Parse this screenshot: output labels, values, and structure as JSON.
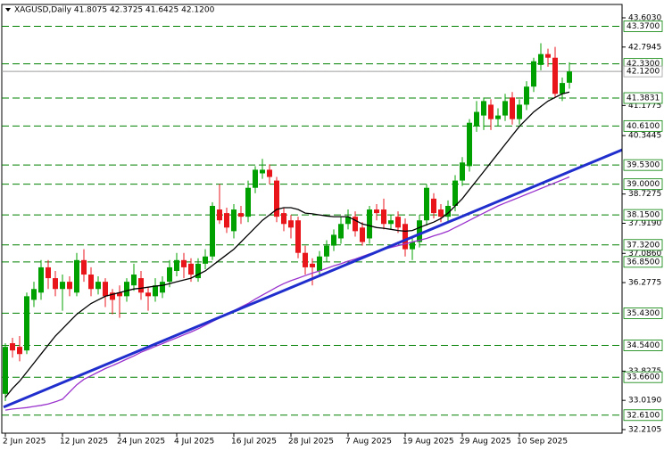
{
  "chart_data": {
    "type": "candlestick",
    "title": "XAGUSD,Daily  41.8075 42.3725 41.6425 42.1200",
    "categories": [
      "2 Jun 2025",
      null,
      null,
      null,
      null,
      null,
      null,
      null,
      "12 Jun 2025",
      null,
      null,
      null,
      null,
      null,
      null,
      null,
      "24 Jun 2025",
      null,
      null,
      null,
      null,
      null,
      null,
      null,
      "4 Jul 2025",
      null,
      null,
      null,
      null,
      null,
      null,
      null,
      "16 Jul 2025",
      null,
      null,
      null,
      null,
      null,
      null,
      null,
      "28 Jul 2025",
      null,
      null,
      null,
      null,
      null,
      null,
      null,
      "7 Aug 2025",
      null,
      null,
      null,
      null,
      null,
      null,
      null,
      "19 Aug 2025",
      null,
      null,
      null,
      null,
      null,
      null,
      null,
      "29 Aug 2025",
      null,
      null,
      null,
      null,
      null,
      null,
      null,
      "10 Sep 2025",
      null,
      null,
      null,
      null,
      null,
      null,
      null
    ],
    "open": [
      33.2,
      34.6,
      34.5,
      34.4,
      35.8,
      36.0,
      36.7,
      36.4,
      36.1,
      36.3,
      36.0,
      36.9,
      36.5,
      36.1,
      36.3,
      36.0,
      36.0,
      35.9,
      36.2,
      36.4,
      36.0,
      35.9,
      36.0,
      36.3,
      36.6,
      36.9,
      36.8,
      36.4,
      36.8,
      37.0,
      38.3,
      38.2,
      37.7,
      38.2,
      38.1,
      38.9,
      39.3,
      39.4,
      39.1,
      38.2,
      38.0,
      38.0,
      37.1,
      36.8,
      36.6,
      37.0,
      37.3,
      37.5,
      37.9,
      38.1,
      37.8,
      37.5,
      38.3,
      38.3,
      37.9,
      38.1,
      37.9,
      37.2,
      37.4,
      38.0,
      38.6,
      38.3,
      38.1,
      38.4,
      39.1,
      39.5,
      40.6,
      40.9,
      41.2,
      40.8,
      40.9,
      41.4,
      40.8,
      41.2,
      41.7,
      42.3,
      42.6,
      42.5,
      41.5,
      41.8075
    ],
    "high": [
      34.6,
      34.75,
      34.8,
      36.0,
      36.3,
      36.9,
      36.9,
      36.6,
      36.5,
      36.45,
      37.1,
      37.2,
      36.7,
      36.45,
      36.4,
      36.1,
      36.2,
      36.4,
      36.8,
      36.6,
      36.15,
      36.4,
      36.45,
      36.9,
      37.1,
      37.1,
      36.95,
      36.95,
      37.2,
      38.5,
      39.0,
      38.35,
      38.45,
      38.4,
      39.1,
      39.5,
      39.7,
      39.55,
      39.2,
      38.35,
      38.15,
      38.1,
      37.3,
      36.95,
      37.15,
      37.45,
      37.75,
      38.1,
      38.3,
      38.25,
      37.95,
      38.4,
      38.45,
      38.6,
      38.15,
      38.25,
      38.05,
      37.55,
      38.15,
      39.0,
      38.75,
      38.45,
      38.55,
      39.25,
      39.75,
      40.8,
      41.3,
      41.4,
      41.35,
      41.1,
      41.5,
      41.55,
      41.35,
      41.85,
      42.5,
      42.9,
      42.75,
      42.8,
      41.95,
      42.3725
    ],
    "low": [
      33.0,
      34.2,
      34.1,
      34.3,
      35.6,
      35.8,
      36.1,
      35.9,
      35.5,
      35.9,
      35.9,
      36.3,
      35.9,
      35.95,
      35.6,
      35.4,
      35.3,
      35.75,
      36.05,
      35.8,
      35.5,
      35.75,
      35.85,
      36.15,
      36.45,
      36.4,
      36.3,
      36.3,
      36.65,
      36.9,
      37.9,
      37.65,
      37.5,
      37.9,
      37.95,
      38.75,
      39.15,
      39.0,
      37.95,
      37.7,
      37.5,
      36.95,
      36.5,
      36.2,
      36.45,
      36.85,
      37.15,
      37.35,
      37.75,
      37.55,
      37.3,
      37.35,
      38.0,
      37.75,
      37.75,
      37.65,
      37.0,
      36.9,
      37.25,
      37.85,
      38.05,
      37.95,
      37.95,
      38.25,
      38.95,
      39.35,
      40.45,
      40.5,
      40.5,
      40.6,
      40.75,
      40.65,
      40.65,
      41.05,
      41.55,
      42.15,
      42.25,
      41.4,
      41.3,
      41.6425
    ],
    "close": [
      34.5,
      34.4,
      34.3,
      35.9,
      36.1,
      36.7,
      36.4,
      36.1,
      36.3,
      36.1,
      36.9,
      36.5,
      36.1,
      36.3,
      35.9,
      35.8,
      35.9,
      36.3,
      36.5,
      36.0,
      35.9,
      36.2,
      36.3,
      36.7,
      36.9,
      36.7,
      36.5,
      36.8,
      37.0,
      38.4,
      38.0,
      37.8,
      38.3,
      38.1,
      38.9,
      39.4,
      39.4,
      39.2,
      38.1,
      37.9,
      37.8,
      37.1,
      36.7,
      36.7,
      37.0,
      37.3,
      37.6,
      37.9,
      38.1,
      37.7,
      37.4,
      38.3,
      38.2,
      37.9,
      38.0,
      37.8,
      37.2,
      37.4,
      38.0,
      38.9,
      38.2,
      38.1,
      38.4,
      39.1,
      39.6,
      40.7,
      41.0,
      41.3,
      40.8,
      40.9,
      41.3,
      40.8,
      41.2,
      41.7,
      42.4,
      42.6,
      42.5,
      41.5,
      41.8,
      42.12
    ],
    "up_color": "#00a000",
    "down_color": "#e8151b",
    "lines": [
      {
        "color": "#000000",
        "values": [
          33.1,
          33.35,
          33.55,
          33.8,
          34.05,
          34.3,
          34.55,
          34.8,
          35.0,
          35.2,
          35.4,
          35.55,
          35.7,
          35.8,
          35.9,
          35.95,
          36.0,
          36.05,
          36.1,
          36.12,
          36.15,
          36.18,
          36.2,
          36.25,
          36.3,
          36.35,
          36.4,
          36.5,
          36.6,
          36.75,
          36.9,
          37.05,
          37.2,
          37.4,
          37.6,
          37.8,
          38.0,
          38.15,
          38.3,
          38.35,
          38.35,
          38.3,
          38.2,
          38.18,
          38.15,
          38.12,
          38.1,
          38.1,
          38.1,
          38.0,
          37.9,
          37.85,
          37.8,
          37.78,
          37.75,
          37.72,
          37.7,
          37.72,
          37.8,
          37.88,
          37.95,
          38.05,
          38.2,
          38.4,
          38.6,
          38.85,
          39.1,
          39.35,
          39.6,
          39.85,
          40.1,
          40.35,
          40.6,
          40.8,
          41.0,
          41.15,
          41.3,
          41.4,
          41.5,
          41.55
        ]
      },
      {
        "color": "#9a32cd",
        "values": [
          32.75,
          32.78,
          32.8,
          32.82,
          32.85,
          32.88,
          32.92,
          32.98,
          33.05,
          33.25,
          33.45,
          33.6,
          33.7,
          33.8,
          33.9,
          33.98,
          34.07,
          34.16,
          34.25,
          34.35,
          34.43,
          34.51,
          34.59,
          34.67,
          34.75,
          34.83,
          34.91,
          35.0,
          35.1,
          35.2,
          35.3,
          35.4,
          35.5,
          35.6,
          35.7,
          35.82,
          35.93,
          36.04,
          36.15,
          36.25,
          36.33,
          36.4,
          36.47,
          36.54,
          36.6,
          36.67,
          36.74,
          36.8,
          36.87,
          36.93,
          37.0,
          37.07,
          37.13,
          37.2,
          37.25,
          37.3,
          37.35,
          37.4,
          37.45,
          37.5,
          37.57,
          37.63,
          37.7,
          37.8,
          37.9,
          38.0,
          38.1,
          38.2,
          38.3,
          38.4,
          38.48,
          38.56,
          38.64,
          38.72,
          38.8,
          38.88,
          38.96,
          39.04,
          39.12,
          39.2
        ]
      }
    ],
    "trendline": {
      "color": "#1f2ecc",
      "x": [
        -0.25,
        86.375
      ],
      "values": [
        32.83,
        39.95
      ]
    },
    "levels": [
      {
        "value": 43.37,
        "label": "43.3700"
      },
      {
        "value": 42.33,
        "label": "42.3300"
      },
      {
        "value": 41.3831,
        "label": "41.3831"
      },
      {
        "value": 40.61,
        "label": "40.6100"
      },
      {
        "value": 39.53,
        "label": "39.5300"
      },
      {
        "value": 39.0,
        "label": "39.0000"
      },
      {
        "value": 38.15,
        "label": "38.1500"
      },
      {
        "value": 37.32,
        "label": "37.3200"
      },
      {
        "value": 36.85,
        "label": "36.8500"
      },
      {
        "value": 35.43,
        "label": "35.4300"
      },
      {
        "value": 34.54,
        "label": "34.5400"
      },
      {
        "value": 33.66,
        "label": "33.6600"
      },
      {
        "value": 32.61,
        "label": "32.6100"
      }
    ],
    "level_color": "#008000",
    "current_price": {
      "value": 42.12,
      "label": "42.1200"
    },
    "ylim": [
      32.111,
      43.973
    ],
    "yticks": [
      {
        "value": 43.603,
        "label": "43.6030"
      },
      {
        "value": 42.7945,
        "label": "42.7945"
      },
      {
        "value": 41.1775,
        "label": "41.1775"
      },
      {
        "value": 40.3445,
        "label": "40.3445"
      },
      {
        "value": 38.7275,
        "label": "38.7275"
      },
      {
        "value": 37.919,
        "label": "37.9190"
      },
      {
        "value": 37.086,
        "label": "37.0860"
      },
      {
        "value": 36.2775,
        "label": "36.2775"
      },
      {
        "value": 33.8275,
        "label": "33.8275"
      },
      {
        "value": 33.019,
        "label": "33.0190"
      },
      {
        "value": 32.2105,
        "label": "32.2105"
      }
    ]
  }
}
